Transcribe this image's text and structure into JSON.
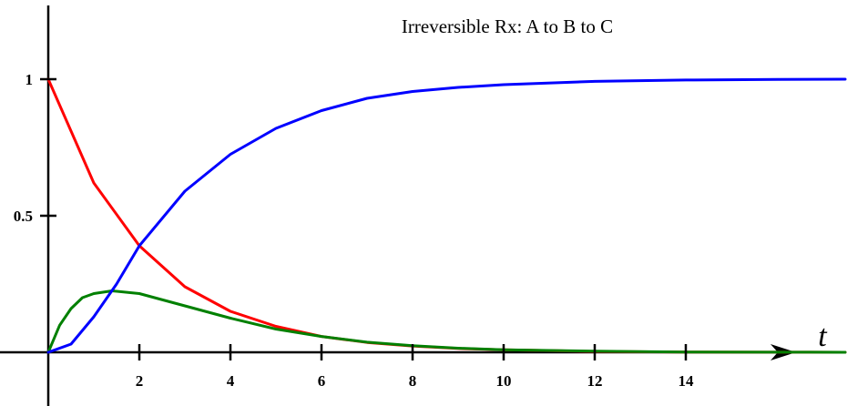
{
  "chart_data": {
    "type": "line",
    "title": "Irreversible Rx:  A to B to C",
    "xlabel": "t",
    "ylabel": "",
    "xlim": [
      0,
      17.5
    ],
    "ylim": [
      -0.2,
      1.27
    ],
    "x_ticks": [
      2,
      4,
      6,
      8,
      10,
      12,
      14
    ],
    "x_tick_labels": [
      "2",
      "4",
      "6",
      "8",
      "10",
      "12",
      "14"
    ],
    "y_ticks": [
      0.5,
      1
    ],
    "y_tick_labels": [
      "0.5",
      "1"
    ],
    "grid": false,
    "legend": "none",
    "series": [
      {
        "color": "#ff0000",
        "x": [
          0,
          1,
          2,
          3,
          4,
          5,
          6,
          7,
          8,
          9,
          10,
          12,
          14,
          16,
          17.5
        ],
        "y": [
          1.0,
          0.62,
          0.39,
          0.24,
          0.15,
          0.095,
          0.058,
          0.036,
          0.023,
          0.014,
          0.009,
          0.003,
          0.001,
          0.0005,
          0.0
        ]
      },
      {
        "color": "#008000",
        "x": [
          0,
          0.25,
          0.5,
          0.75,
          1,
          1.4,
          2,
          3,
          4,
          5,
          6,
          7,
          8,
          9,
          10,
          12,
          14,
          16,
          17.5
        ],
        "y": [
          0.0,
          0.099,
          0.16,
          0.2,
          0.215,
          0.225,
          0.215,
          0.17,
          0.125,
          0.085,
          0.058,
          0.037,
          0.024,
          0.015,
          0.009,
          0.004,
          0.001,
          0.0005,
          0.0
        ]
      },
      {
        "color": "#0000ff",
        "x": [
          0,
          0.5,
          1,
          1.5,
          2,
          3,
          4,
          5,
          6,
          7,
          8,
          9,
          10,
          12,
          14,
          16,
          17.5
        ],
        "y": [
          0.0,
          0.03,
          0.13,
          0.25,
          0.39,
          0.59,
          0.725,
          0.82,
          0.885,
          0.93,
          0.955,
          0.97,
          0.98,
          0.992,
          0.997,
          0.999,
          1.0
        ]
      }
    ]
  }
}
